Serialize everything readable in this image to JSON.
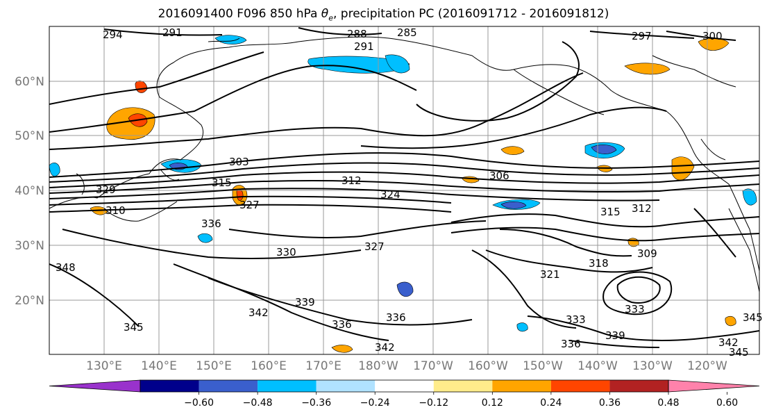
{
  "title": {
    "prefix": "2016091400 F096 850 hPa ",
    "theta": "θ",
    "theta_sub": "e",
    "suffix": ", precipitation PC (2016091712 - 2016091812)"
  },
  "map": {
    "lon_ticks": [
      "130°E",
      "140°E",
      "150°E",
      "160°E",
      "170°E",
      "180°W",
      "170°W",
      "160°W",
      "150°W",
      "140°W",
      "130°W",
      "120°W"
    ],
    "lat_ticks": [
      "60°N",
      "50°N",
      "40°N",
      "30°N",
      "20°N"
    ],
    "contour_labels": [
      "294",
      "291",
      "288",
      "285",
      "291",
      "297",
      "300",
      "303",
      "315",
      "329",
      "312",
      "306",
      "324",
      "327",
      "310",
      "336",
      "330",
      "327",
      "315",
      "312",
      "318",
      "321",
      "309",
      "348",
      "339",
      "342",
      "345",
      "336",
      "336",
      "342",
      "333",
      "333",
      "336",
      "339",
      "342",
      "345",
      "345"
    ]
  },
  "colorbar": {
    "colors": [
      "#9932cc",
      "#00008b",
      "#3a5fcd",
      "#00bfff",
      "#b0e2ff",
      "#ffffff",
      "#ffec8b",
      "#ffa500",
      "#ff4500",
      "#b22222",
      "#ff82ab"
    ],
    "tick_labels": [
      "−0.60",
      "−0.48",
      "−0.36",
      "−0.24",
      "−0.12",
      "0.12",
      "0.24",
      "0.36",
      "0.48",
      "0.60"
    ]
  }
}
